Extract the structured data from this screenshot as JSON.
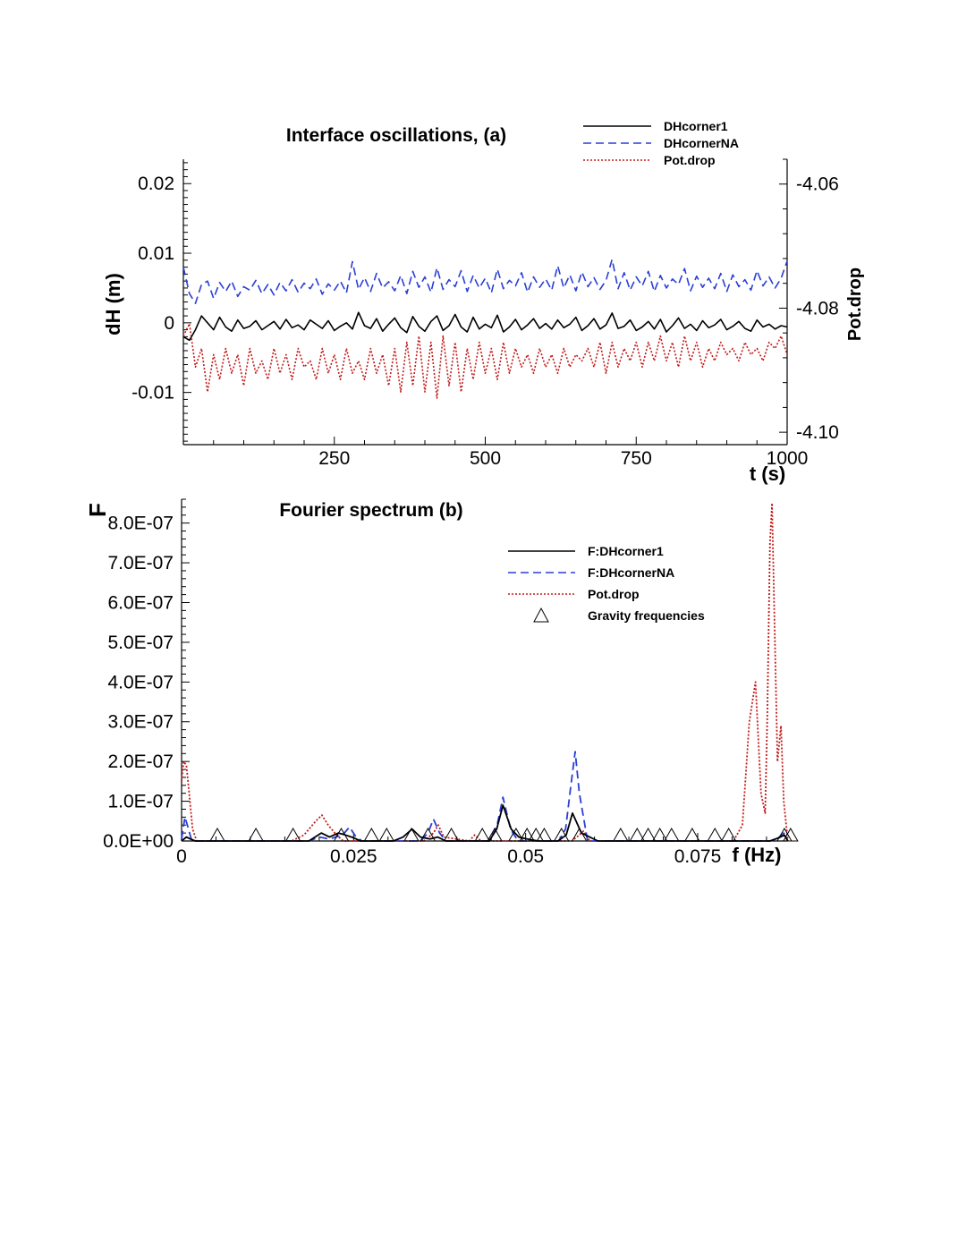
{
  "chart_data": [
    {
      "type": "line",
      "title": "Interface oscillations,  (a)",
      "xlabel": "t (s)",
      "ylabel": "dH (m)",
      "y2label": "Pot.drop",
      "xlim": [
        0,
        1000
      ],
      "ylim": [
        -0.0175,
        0.0235
      ],
      "y2lim": [
        -4.102,
        -4.056
      ],
      "xticks": [
        "250",
        "500",
        "750",
        "1000"
      ],
      "yticks": [
        "0.02",
        "0.01",
        "0",
        "-0.01"
      ],
      "y2ticks": [
        "-4.06",
        "-4.08",
        "-4.10"
      ],
      "legend_position": "top-right",
      "series": [
        {
          "name": "DHcorner1",
          "color": "#000000",
          "dash": "solid",
          "axis": "left",
          "x": [
            0,
            10,
            20,
            30,
            40,
            50,
            60,
            70,
            80,
            90,
            100,
            110,
            120,
            130,
            140,
            150,
            160,
            170,
            180,
            190,
            200,
            210,
            220,
            230,
            240,
            250,
            260,
            270,
            280,
            290,
            300,
            310,
            320,
            330,
            340,
            350,
            360,
            370,
            380,
            390,
            400,
            410,
            420,
            430,
            440,
            450,
            460,
            470,
            480,
            490,
            500,
            510,
            520,
            530,
            540,
            550,
            560,
            570,
            580,
            590,
            600,
            610,
            620,
            630,
            640,
            650,
            660,
            670,
            680,
            690,
            700,
            710,
            720,
            730,
            740,
            750,
            760,
            770,
            780,
            790,
            800,
            810,
            820,
            830,
            840,
            850,
            860,
            870,
            880,
            890,
            900,
            910,
            920,
            930,
            940,
            950,
            960,
            970,
            980,
            990,
            1000
          ],
          "y": [
            -0.002,
            -0.0025,
            -0.001,
            0.001,
            0.0,
            -0.001,
            0.0008,
            -0.0006,
            -0.0012,
            0.0004,
            -0.0008,
            -0.0005,
            0.0003,
            -0.001,
            -0.0004,
            0.0002,
            -0.0009,
            0.0005,
            -0.0007,
            -0.0003,
            -0.001,
            0.0004,
            -0.0002,
            -0.0008,
            0.0003,
            -0.0011,
            -0.0005,
            0.0,
            -0.0009,
            0.0015,
            -0.0004,
            -0.0008,
            0.0006,
            -0.0012,
            -0.0002,
            0.0007,
            -0.0007,
            -0.0014,
            0.0009,
            -0.0005,
            -0.0012,
            0.0002,
            0.001,
            -0.0011,
            -0.0004,
            0.0012,
            -0.0006,
            -0.0013,
            0.0008,
            -0.0009,
            -0.0002,
            -0.0007,
            0.0011,
            -0.0013,
            -0.0006,
            0.0005,
            -0.001,
            -0.0003,
            0.0006,
            -0.0008,
            -0.0001,
            -0.0009,
            0.0004,
            -0.0007,
            -0.0002,
            0.0008,
            -0.0011,
            -0.0004,
            0.0006,
            -0.0009,
            -0.0003,
            0.0014,
            -0.0008,
            -0.0005,
            0.0004,
            -0.0011,
            -0.0006,
            0.0002,
            -0.0009,
            0.0005,
            -0.0013,
            -0.0004,
            0.0007,
            -0.0008,
            -0.0002,
            -0.0011,
            0.0003,
            -0.0007,
            -0.0003,
            0.0005,
            -0.001,
            -0.0005,
            0.0002,
            -0.0008,
            -0.0012,
            0.0004,
            -0.0006,
            -0.0002,
            -0.0009,
            -0.0004,
            -0.0006
          ]
        },
        {
          "name": "DHcornerNA",
          "color": "#2a3fd6",
          "dash": "dashed",
          "axis": "left",
          "x": [
            0,
            10,
            20,
            30,
            40,
            50,
            60,
            70,
            80,
            90,
            100,
            110,
            120,
            130,
            140,
            150,
            160,
            170,
            180,
            190,
            200,
            210,
            220,
            230,
            240,
            250,
            260,
            270,
            280,
            290,
            300,
            310,
            320,
            330,
            340,
            350,
            360,
            370,
            380,
            390,
            400,
            410,
            420,
            430,
            440,
            450,
            460,
            470,
            480,
            490,
            500,
            510,
            520,
            530,
            540,
            550,
            560,
            570,
            580,
            590,
            600,
            610,
            620,
            630,
            640,
            650,
            660,
            670,
            680,
            690,
            700,
            710,
            720,
            730,
            740,
            750,
            760,
            770,
            780,
            790,
            800,
            810,
            820,
            830,
            840,
            850,
            860,
            870,
            880,
            890,
            900,
            910,
            920,
            930,
            940,
            950,
            960,
            970,
            980,
            990,
            1000
          ],
          "y": [
            0.008,
            0.0042,
            0.0028,
            0.0055,
            0.006,
            0.0035,
            0.0058,
            0.0045,
            0.006,
            0.0038,
            0.0052,
            0.0047,
            0.0061,
            0.0042,
            0.0055,
            0.004,
            0.0058,
            0.0046,
            0.0062,
            0.0044,
            0.0057,
            0.0049,
            0.0063,
            0.0041,
            0.0056,
            0.0047,
            0.006,
            0.0043,
            0.0088,
            0.0048,
            0.0065,
            0.0045,
            0.0071,
            0.005,
            0.0059,
            0.0046,
            0.0068,
            0.0042,
            0.0074,
            0.0051,
            0.0066,
            0.0044,
            0.0079,
            0.0048,
            0.0062,
            0.0052,
            0.0075,
            0.0045,
            0.0068,
            0.005,
            0.0064,
            0.0043,
            0.0077,
            0.0049,
            0.0061,
            0.0053,
            0.0072,
            0.0044,
            0.0066,
            0.0051,
            0.0063,
            0.0047,
            0.0082,
            0.005,
            0.0069,
            0.0046,
            0.0073,
            0.0052,
            0.0065,
            0.0048,
            0.0061,
            0.0091,
            0.0049,
            0.0072,
            0.0047,
            0.0066,
            0.0053,
            0.0074,
            0.0045,
            0.0068,
            0.005,
            0.0063,
            0.0055,
            0.0078,
            0.0046,
            0.0067,
            0.0051,
            0.0064,
            0.0049,
            0.0071,
            0.0045,
            0.0069,
            0.0052,
            0.0062,
            0.0047,
            0.0075,
            0.0053,
            0.0066,
            0.005,
            0.0064,
            0.0089
          ]
        },
        {
          "name": "Pot.drop",
          "color": "#c21a1a",
          "dash": "dotted",
          "axis": "right",
          "x": [
            0,
            10,
            20,
            30,
            40,
            50,
            60,
            70,
            80,
            90,
            100,
            110,
            120,
            130,
            140,
            150,
            160,
            170,
            180,
            190,
            200,
            210,
            220,
            230,
            240,
            250,
            260,
            270,
            280,
            290,
            300,
            310,
            320,
            330,
            340,
            350,
            360,
            370,
            380,
            390,
            400,
            410,
            420,
            430,
            440,
            450,
            460,
            470,
            480,
            490,
            500,
            510,
            520,
            530,
            540,
            550,
            560,
            570,
            580,
            590,
            600,
            610,
            620,
            630,
            640,
            650,
            660,
            670,
            680,
            690,
            700,
            710,
            720,
            730,
            740,
            750,
            760,
            770,
            780,
            790,
            800,
            810,
            820,
            830,
            840,
            850,
            860,
            870,
            880,
            890,
            900,
            910,
            920,
            930,
            940,
            950,
            960,
            970,
            980,
            990,
            1000
          ],
          "y": [
            -4.0845,
            -4.0825,
            -4.0895,
            -4.0865,
            -4.0935,
            -4.0875,
            -4.0915,
            -4.0865,
            -4.0905,
            -4.0875,
            -4.0925,
            -4.0865,
            -4.0905,
            -4.0885,
            -4.0915,
            -4.0865,
            -4.0905,
            -4.0875,
            -4.0915,
            -4.0865,
            -4.0895,
            -4.0885,
            -4.0915,
            -4.0865,
            -4.0905,
            -4.0875,
            -4.0915,
            -4.0865,
            -4.0905,
            -4.0885,
            -4.0915,
            -4.0865,
            -4.0905,
            -4.0875,
            -4.0925,
            -4.0865,
            -4.0935,
            -4.0855,
            -4.0925,
            -4.0845,
            -4.0935,
            -4.0855,
            -4.0945,
            -4.0845,
            -4.0925,
            -4.0855,
            -4.0935,
            -4.0865,
            -4.0915,
            -4.0855,
            -4.0905,
            -4.0865,
            -4.0915,
            -4.0855,
            -4.0905,
            -4.0865,
            -4.0895,
            -4.0875,
            -4.0905,
            -4.0865,
            -4.0895,
            -4.0875,
            -4.0905,
            -4.0865,
            -4.0895,
            -4.0875,
            -4.0885,
            -4.0865,
            -4.0895,
            -4.0855,
            -4.0905,
            -4.0855,
            -4.0895,
            -4.0865,
            -4.0885,
            -4.0855,
            -4.0895,
            -4.0855,
            -4.0885,
            -4.0845,
            -4.0885,
            -4.0855,
            -4.0895,
            -4.0845,
            -4.0885,
            -4.0855,
            -4.0895,
            -4.0865,
            -4.0885,
            -4.0855,
            -4.0875,
            -4.0865,
            -4.0885,
            -4.0855,
            -4.0875,
            -4.0865,
            -4.0885,
            -4.0855,
            -4.0865,
            -4.0845,
            -4.0875
          ]
        }
      ]
    },
    {
      "type": "line",
      "title": "Fourier spectrum (b)",
      "xlabel": "f (Hz)",
      "ylabel": "F",
      "xlim": [
        0,
        0.088
      ],
      "ylim": [
        0,
        8.6e-07
      ],
      "xticks": [
        "0",
        "0.025",
        "0.05",
        "0.075"
      ],
      "yticks": [
        "8.0E-07",
        "7.0E-07",
        "6.0E-07",
        "5.0E-07",
        "4.0E-07",
        "3.0E-07",
        "2.0E-07",
        "1.0E-07",
        "0.0E+00"
      ],
      "legend_position": "upper-right",
      "series": [
        {
          "name": "F:DHcorner1",
          "color": "#000000",
          "dash": "solid",
          "x": [
            0,
            0.0007,
            0.0013,
            0.002,
            0.0185,
            0.0203,
            0.0215,
            0.0228,
            0.0238,
            0.025,
            0.026,
            0.0308,
            0.0322,
            0.0335,
            0.0347,
            0.0361,
            0.0372,
            0.0384,
            0.0447,
            0.0458,
            0.0467,
            0.0479,
            0.049,
            0.0502,
            0.0518,
            0.0547,
            0.0559,
            0.0568,
            0.0581,
            0.0593,
            0.0605,
            0.0855,
            0.0868,
            0.0876,
            0.0881
          ],
          "y": [
            0,
            1e-08,
            5e-09,
            0,
            0,
            2e-08,
            1e-08,
            2e-08,
            1.5e-08,
            8e-09,
            0,
            0,
            1e-08,
            3e-08,
            1e-08,
            5e-09,
            1e-08,
            0,
            0,
            3e-08,
            9e-08,
            3e-08,
            1e-08,
            5e-09,
            0,
            0,
            1.5e-08,
            7e-08,
            2e-08,
            1e-08,
            0,
            0,
            8e-09,
            1.5e-08,
            0
          ]
        },
        {
          "name": "F:DHcornerNA",
          "color": "#2a3fd6",
          "dash": "dashed",
          "x": [
            0,
            0.0005,
            0.001,
            0.0015,
            0.0185,
            0.02,
            0.0215,
            0.0234,
            0.0244,
            0.0253,
            0.0262,
            0.0347,
            0.0358,
            0.0366,
            0.0375,
            0.0384,
            0.0447,
            0.0458,
            0.0467,
            0.0478,
            0.0489,
            0.0548,
            0.0558,
            0.0565,
            0.0572,
            0.0578,
            0.059,
            0.0855,
            0.0866,
            0.0875,
            0.0881
          ],
          "y": [
            5e-09,
            6e-08,
            3e-08,
            0,
            0,
            1e-08,
            5e-09,
            1.5e-08,
            3.5e-08,
            1.2e-08,
            0,
            0,
            2e-08,
            5.5e-08,
            2e-08,
            0,
            0,
            3.5e-08,
            1.1e-07,
            3e-08,
            0,
            0,
            3e-08,
            1.3e-07,
            2.25e-07,
            1.2e-07,
            0,
            0,
            6e-09,
            2e-08,
            0
          ]
        },
        {
          "name": "Pot.drop",
          "color": "#c21a1a",
          "dash": "dotted",
          "x": [
            0,
            0.0003,
            0.0007,
            0.0011,
            0.0016,
            0.0022,
            0.0029,
            0.016,
            0.0178,
            0.0195,
            0.0204,
            0.0213,
            0.0225,
            0.0235,
            0.0352,
            0.0366,
            0.0373,
            0.0381,
            0.0418,
            0.0426,
            0.0435,
            0.0567,
            0.0578,
            0.0584,
            0.0593,
            0.0802,
            0.0815,
            0.0825,
            0.0834,
            0.0842,
            0.0848,
            0.0851,
            0.0855,
            0.0858,
            0.0861,
            0.0866,
            0.0871,
            0.0875,
            0.0881
          ],
          "y": [
            1.5e-07,
            2e-07,
            1.9e-07,
            1.2e-07,
            3e-08,
            0,
            0,
            0,
            1.5e-08,
            5e-08,
            6.5e-08,
            4e-08,
            1.5e-08,
            0,
            0,
            2e-08,
            4e-08,
            1e-08,
            0,
            1.5e-08,
            0,
            0,
            1.5e-08,
            2.5e-08,
            0,
            0,
            4e-08,
            3e-07,
            4e-07,
            1.2e-07,
            7e-08,
            3e-07,
            7.5e-07,
            8.5e-07,
            6e-07,
            2e-07,
            2.9e-07,
            1e-07,
            0
          ]
        }
      ],
      "markers": {
        "name": "Gravity frequencies",
        "symbol": "open-triangle",
        "x": [
          0.0052,
          0.0108,
          0.0162,
          0.0232,
          0.0276,
          0.0298,
          0.0334,
          0.0358,
          0.0392,
          0.0437,
          0.0455,
          0.0486,
          0.0502,
          0.0515,
          0.0527,
          0.0552,
          0.0578,
          0.0638,
          0.0662,
          0.0678,
          0.0695,
          0.0712,
          0.0742,
          0.0775,
          0.0795,
          0.0876,
          0.0885
        ]
      }
    }
  ]
}
